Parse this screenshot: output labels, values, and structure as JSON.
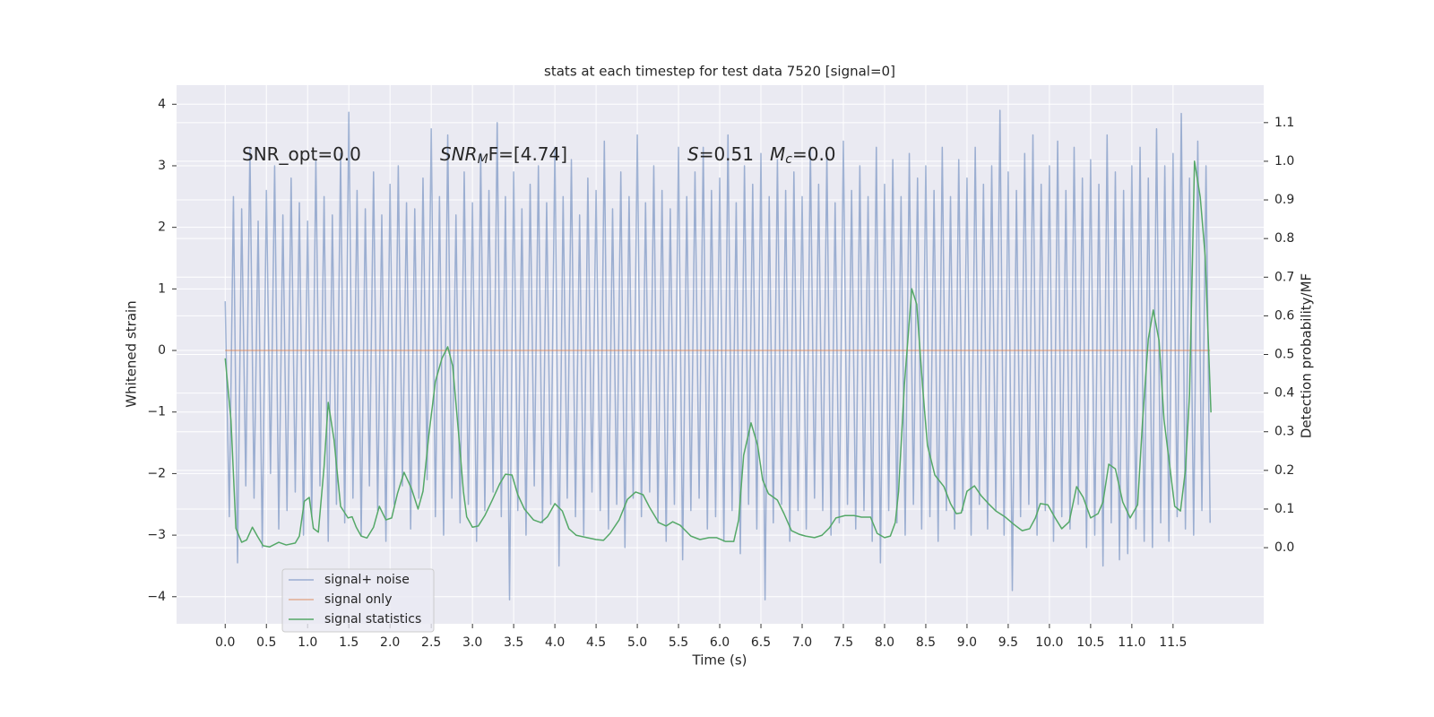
{
  "chart_data": {
    "type": "line",
    "title": "stats at each timestep for test data 7520 [signal=0]",
    "xlabel": "Time (s)",
    "ylabel": "Whitened strain",
    "y2label": "Detection probability/MF",
    "xlim": [
      -0.59,
      12.6
    ],
    "ylim": [
      -4.44,
      4.31
    ],
    "y2lim": [
      -0.197,
      1.197
    ],
    "xticks": [
      {
        "value": 0,
        "label": "0.0"
      },
      0.5,
      {
        "value": 1,
        "label": "1.0"
      },
      1.5,
      {
        "value": 2,
        "label": "2.0"
      },
      2.5,
      {
        "value": 3,
        "label": "3.0"
      },
      3.5,
      {
        "value": 4,
        "label": "4.0"
      },
      4.5,
      {
        "value": 5,
        "label": "5.0"
      },
      5.5,
      {
        "value": 6,
        "label": "6.0"
      },
      6.5,
      {
        "value": 7,
        "label": "7.0"
      },
      7.5,
      {
        "value": 8,
        "label": "8.0"
      },
      8.5,
      {
        "value": 9,
        "label": "9.0"
      },
      9.5,
      {
        "value": 10,
        "label": "10.0"
      },
      10.5,
      {
        "value": 11,
        "label": "11.0"
      },
      11.5
    ],
    "yticks": [
      {
        "value": -4,
        "label": "−4"
      },
      {
        "value": -3,
        "label": "−3"
      },
      {
        "value": -2,
        "label": "−2"
      },
      {
        "value": -1,
        "label": "−1"
      },
      0,
      1,
      2,
      3,
      4
    ],
    "y2ticks": [
      {
        "value": 0,
        "label": "0.0"
      },
      0.1,
      0.2,
      0.3,
      0.4,
      0.5,
      0.6,
      0.7,
      0.8,
      0.9,
      {
        "value": 1,
        "label": "1.0"
      },
      1.1
    ],
    "grid": true,
    "legend": "lower left",
    "annotations": [
      {
        "text": "SNR_opt=0.0"
      },
      {
        "italic": "SNR",
        "sub": "M",
        "text": "F=[4.74]"
      },
      {
        "italic": "S",
        "text": "=0.51"
      },
      {
        "italic": "M",
        "sub": "c",
        "text": "=0.0"
      }
    ],
    "series": [
      {
        "name": "signal+ noise",
        "color": "#4c72b0",
        "x": [
          0.0,
          0.05,
          0.1,
          0.15,
          0.2,
          0.25,
          0.3,
          0.35,
          0.4,
          0.45,
          0.5,
          0.55,
          0.6,
          0.65,
          0.7,
          0.75,
          0.8,
          0.85,
          0.9,
          0.95,
          1.0,
          1.05,
          1.1,
          1.15,
          1.2,
          1.25,
          1.3,
          1.35,
          1.4,
          1.45,
          1.5,
          1.55,
          1.6,
          1.65,
          1.7,
          1.75,
          1.8,
          1.85,
          1.9,
          1.95,
          2.0,
          2.05,
          2.1,
          2.15,
          2.2,
          2.25,
          2.3,
          2.35,
          2.4,
          2.45,
          2.5,
          2.55,
          2.6,
          2.65,
          2.7,
          2.75,
          2.8,
          2.85,
          2.9,
          2.95,
          3.0,
          3.05,
          3.1,
          3.15,
          3.2,
          3.25,
          3.3,
          3.35,
          3.4,
          3.45,
          3.5,
          3.55,
          3.6,
          3.65,
          3.7,
          3.75,
          3.8,
          3.85,
          3.9,
          3.95,
          4.0,
          4.05,
          4.1,
          4.15,
          4.2,
          4.25,
          4.3,
          4.35,
          4.4,
          4.45,
          4.5,
          4.55,
          4.6,
          4.65,
          4.7,
          4.75,
          4.8,
          4.85,
          4.9,
          4.95,
          5.0,
          5.05,
          5.1,
          5.15,
          5.2,
          5.25,
          5.3,
          5.35,
          5.4,
          5.45,
          5.5,
          5.55,
          5.6,
          5.65,
          5.7,
          5.75,
          5.8,
          5.85,
          5.9,
          5.95,
          6.0,
          6.05,
          6.1,
          6.15,
          6.2,
          6.25,
          6.3,
          6.35,
          6.4,
          6.45,
          6.5,
          6.55,
          6.6,
          6.65,
          6.7,
          6.75,
          6.8,
          6.85,
          6.9,
          6.95,
          7.0,
          7.05,
          7.1,
          7.15,
          7.2,
          7.25,
          7.3,
          7.35,
          7.4,
          7.45,
          7.5,
          7.55,
          7.6,
          7.65,
          7.7,
          7.75,
          7.8,
          7.85,
          7.9,
          7.95,
          8.0,
          8.05,
          8.1,
          8.15,
          8.2,
          8.25,
          8.3,
          8.35,
          8.4,
          8.45,
          8.5,
          8.55,
          8.6,
          8.65,
          8.7,
          8.75,
          8.8,
          8.85,
          8.9,
          8.95,
          9.0,
          9.05,
          9.1,
          9.15,
          9.2,
          9.25,
          9.3,
          9.35,
          9.4,
          9.45,
          9.5,
          9.55,
          9.6,
          9.65,
          9.7,
          9.75,
          9.8,
          9.85,
          9.9,
          9.95,
          10.0,
          10.05,
          10.1,
          10.15,
          10.2,
          10.25,
          10.3,
          10.35,
          10.4,
          10.45,
          10.5,
          10.55,
          10.6,
          10.65,
          10.7,
          10.75,
          10.8,
          10.85,
          10.9,
          10.95,
          11.0,
          11.05,
          11.1,
          11.15,
          11.2,
          11.25,
          11.3,
          11.35,
          11.4,
          11.45,
          11.5,
          11.55,
          11.6,
          11.65,
          11.7,
          11.75,
          11.8,
          11.85,
          11.9,
          11.95
        ],
        "values": [
          0.8,
          -2.7,
          2.5,
          -3.45,
          2.3,
          -2.2,
          3.3,
          -2.4,
          2.1,
          -3.2,
          2.6,
          -2.0,
          3.0,
          -2.9,
          2.2,
          -2.6,
          2.8,
          -2.3,
          2.4,
          -3.0,
          2.1,
          -2.7,
          3.1,
          -2.2,
          2.5,
          -3.1,
          2.2,
          -2.5,
          3.2,
          -2.8,
          3.87,
          -2.4,
          2.6,
          -3.0,
          2.3,
          -2.2,
          2.9,
          -2.6,
          2.2,
          -3.1,
          2.7,
          -2.5,
          3.0,
          -2.2,
          2.4,
          -2.9,
          2.3,
          -2.4,
          2.8,
          -2.1,
          3.6,
          -2.7,
          2.5,
          -3.0,
          3.5,
          -2.4,
          2.2,
          -2.8,
          2.9,
          -2.5,
          2.4,
          -3.1,
          3.2,
          -2.6,
          2.6,
          -2.3,
          3.7,
          -2.7,
          2.5,
          -4.05,
          2.9,
          -2.6,
          2.3,
          -3.0,
          2.7,
          -2.2,
          3.0,
          -2.8,
          2.4,
          -2.5,
          3.3,
          -3.5,
          2.5,
          -2.4,
          3.1,
          -2.7,
          2.2,
          -3.0,
          2.8,
          -2.3,
          2.6,
          -2.6,
          3.4,
          -2.9,
          2.3,
          -2.5,
          2.9,
          -3.2,
          2.5,
          -2.4,
          3.5,
          -2.7,
          2.4,
          -2.3,
          3.0,
          -2.8,
          2.6,
          -3.1,
          2.3,
          -2.5,
          3.3,
          -3.4,
          2.5,
          -2.6,
          2.9,
          -2.4,
          3.3,
          -2.9,
          2.6,
          -2.7,
          2.8,
          -3.1,
          3.5,
          -2.6,
          2.4,
          -3.3,
          3.0,
          -2.5,
          2.7,
          -2.9,
          3.2,
          -4.05,
          2.5,
          -2.8,
          3.1,
          -2.5,
          2.6,
          -3.1,
          2.9,
          -2.6,
          2.5,
          -2.9,
          3.3,
          -2.4,
          2.7,
          -2.6,
          3.2,
          -3.0,
          2.4,
          -2.8,
          3.4,
          -2.5,
          2.6,
          -2.9,
          3.0,
          -2.6,
          2.5,
          -3.1,
          3.3,
          -3.45,
          2.7,
          -2.6,
          3.1,
          -2.8,
          2.5,
          -3.0,
          3.2,
          -2.5,
          2.8,
          -2.9,
          3.0,
          -2.7,
          2.6,
          -3.1,
          3.3,
          -2.6,
          2.5,
          -2.9,
          3.1,
          -2.6,
          2.8,
          -3.0,
          3.3,
          -2.5,
          2.7,
          -2.9,
          3.0,
          -2.6,
          3.9,
          -3.0,
          2.9,
          -3.9,
          2.6,
          -2.7,
          3.2,
          -2.5,
          3.5,
          -3.0,
          2.7,
          -2.6,
          3.0,
          -3.1,
          3.4,
          -2.7,
          2.6,
          -2.9,
          3.3,
          -2.5,
          2.8,
          -3.2,
          3.1,
          -3.0,
          2.7,
          -3.5,
          3.5,
          -2.8,
          2.9,
          -3.4,
          2.6,
          -3.3,
          3.0,
          -2.9,
          3.3,
          -3.1,
          2.8,
          -3.2,
          3.6,
          -2.8,
          3.0,
          -3.1,
          3.2,
          -2.7,
          3.85,
          -2.9,
          2.8,
          -3.0,
          3.4,
          -2.6,
          3.0,
          -2.8
        ]
      },
      {
        "name": "signal only",
        "color": "#dd8452",
        "x": [
          0,
          11.95
        ],
        "values": [
          0,
          0
        ]
      },
      {
        "name": "signal statistics",
        "color": "#55a868",
        "axis": "y2",
        "x": [
          0.0,
          0.07,
          0.13,
          0.2,
          0.26,
          0.33,
          0.39,
          0.46,
          0.54,
          0.65,
          0.74,
          0.85,
          0.9,
          0.96,
          1.02,
          1.07,
          1.13,
          1.2,
          1.25,
          1.32,
          1.4,
          1.49,
          1.54,
          1.59,
          1.65,
          1.72,
          1.8,
          1.87,
          1.95,
          2.02,
          2.09,
          2.17,
          2.26,
          2.34,
          2.4,
          2.47,
          2.55,
          2.63,
          2.7,
          2.76,
          2.83,
          2.89,
          2.93,
          3.0,
          3.07,
          3.15,
          3.24,
          3.33,
          3.4,
          3.48,
          3.55,
          3.63,
          3.74,
          3.83,
          3.91,
          4.0,
          4.09,
          4.17,
          4.26,
          4.39,
          4.5,
          4.59,
          4.67,
          4.78,
          4.88,
          4.98,
          5.07,
          5.15,
          5.26,
          5.35,
          5.43,
          5.52,
          5.65,
          5.76,
          5.87,
          5.96,
          6.07,
          6.17,
          6.23,
          6.29,
          6.38,
          6.46,
          6.52,
          6.59,
          6.7,
          6.78,
          6.87,
          6.96,
          7.04,
          7.15,
          7.24,
          7.33,
          7.41,
          7.52,
          7.63,
          7.72,
          7.83,
          7.91,
          8.0,
          8.07,
          8.13,
          8.17,
          8.24,
          8.33,
          8.39,
          8.46,
          8.52,
          8.61,
          8.72,
          8.8,
          8.87,
          8.93,
          9.0,
          9.09,
          9.17,
          9.26,
          9.35,
          9.46,
          9.57,
          9.67,
          9.76,
          9.83,
          9.89,
          9.98,
          10.07,
          10.15,
          10.24,
          10.33,
          10.41,
          10.5,
          10.59,
          10.65,
          10.72,
          10.8,
          10.89,
          10.98,
          11.07,
          11.13,
          11.2,
          11.26,
          11.33,
          11.39,
          11.46,
          11.52,
          11.59,
          11.65,
          11.7,
          11.74,
          11.76,
          11.83,
          11.89,
          11.96
        ],
        "values": [
          0.49,
          0.33,
          0.05,
          0.014,
          0.02,
          0.053,
          0.03,
          0.005,
          0.002,
          0.014,
          0.007,
          0.012,
          0.03,
          0.12,
          0.13,
          0.05,
          0.04,
          0.21,
          0.376,
          0.28,
          0.107,
          0.077,
          0.08,
          0.053,
          0.03,
          0.025,
          0.053,
          0.107,
          0.072,
          0.077,
          0.14,
          0.195,
          0.153,
          0.1,
          0.146,
          0.29,
          0.43,
          0.49,
          0.52,
          0.47,
          0.3,
          0.146,
          0.08,
          0.053,
          0.056,
          0.083,
          0.123,
          0.165,
          0.19,
          0.188,
          0.137,
          0.1,
          0.072,
          0.065,
          0.08,
          0.114,
          0.095,
          0.049,
          0.032,
          0.026,
          0.021,
          0.019,
          0.037,
          0.072,
          0.125,
          0.144,
          0.137,
          0.104,
          0.065,
          0.056,
          0.067,
          0.058,
          0.03,
          0.021,
          0.026,
          0.026,
          0.016,
          0.016,
          0.072,
          0.239,
          0.323,
          0.265,
          0.176,
          0.14,
          0.123,
          0.088,
          0.044,
          0.035,
          0.03,
          0.026,
          0.032,
          0.051,
          0.077,
          0.083,
          0.083,
          0.079,
          0.079,
          0.037,
          0.026,
          0.03,
          0.065,
          0.146,
          0.42,
          0.67,
          0.63,
          0.42,
          0.265,
          0.188,
          0.158,
          0.114,
          0.088,
          0.09,
          0.146,
          0.16,
          0.135,
          0.114,
          0.095,
          0.08,
          0.06,
          0.044,
          0.049,
          0.077,
          0.114,
          0.111,
          0.077,
          0.049,
          0.067,
          0.158,
          0.13,
          0.077,
          0.088,
          0.118,
          0.216,
          0.204,
          0.118,
          0.077,
          0.111,
          0.327,
          0.54,
          0.615,
          0.536,
          0.332,
          0.211,
          0.107,
          0.095,
          0.2,
          0.397,
          0.79,
          1.0,
          0.907,
          0.754,
          0.35
        ]
      }
    ]
  }
}
